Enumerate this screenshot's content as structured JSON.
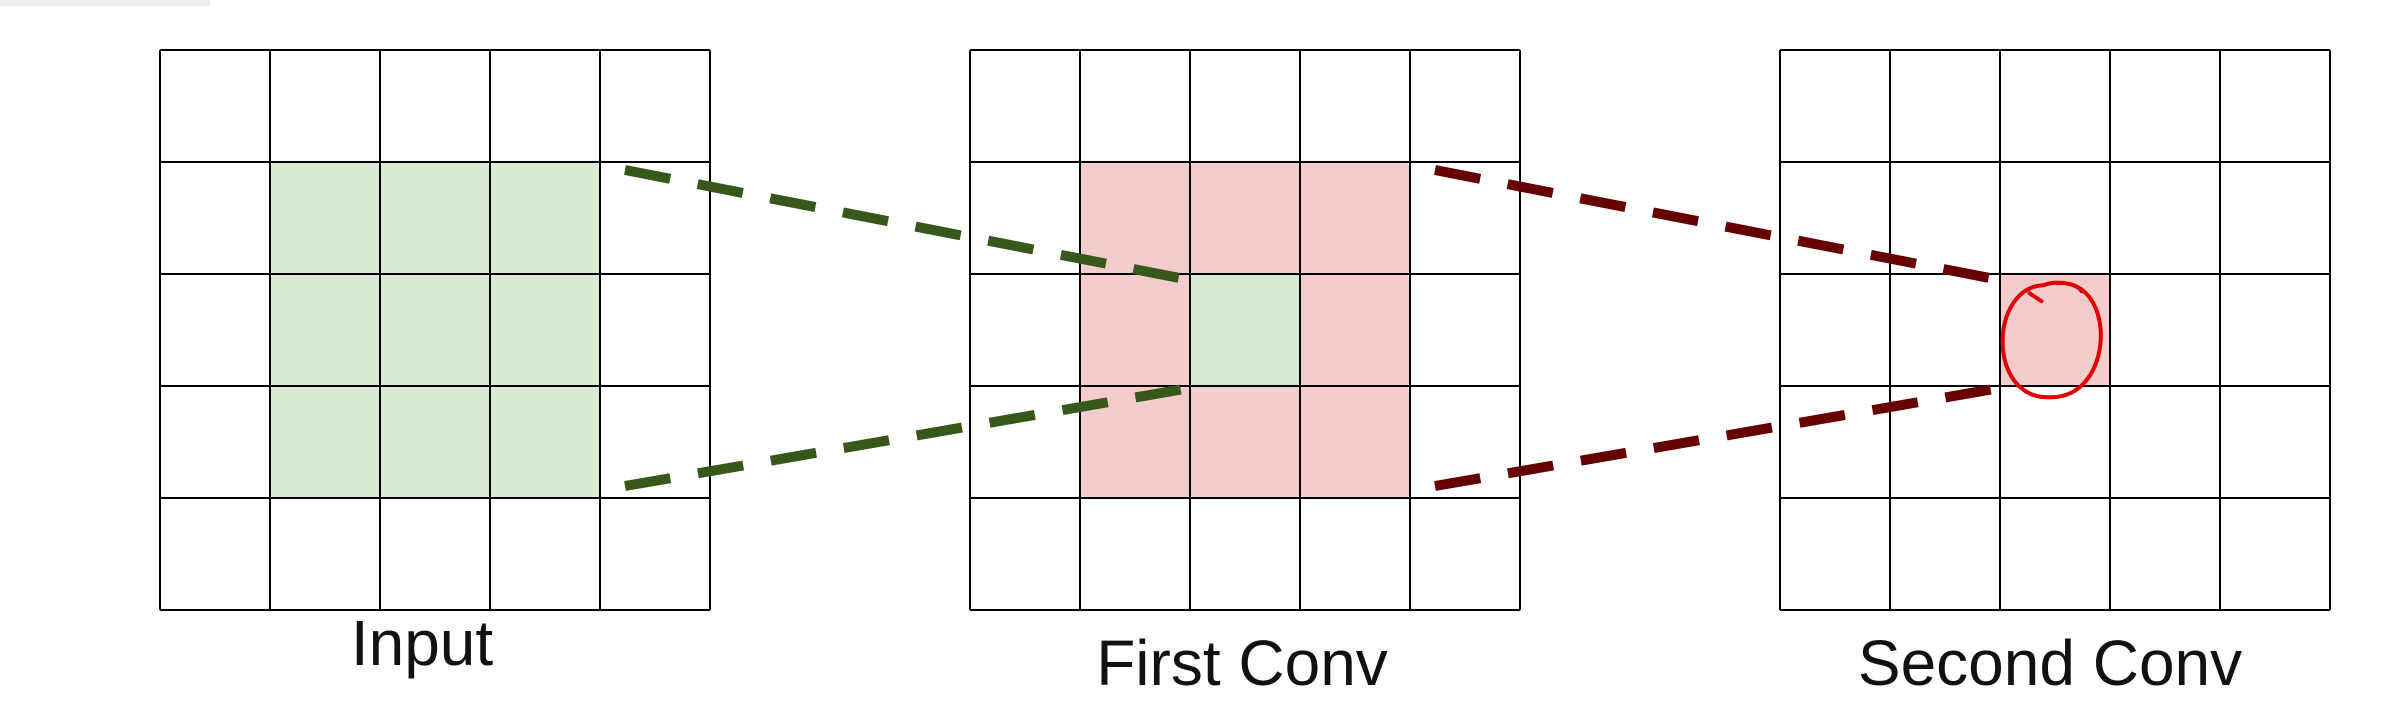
{
  "grids": [
    {
      "id": "input",
      "label": "Input",
      "rows": 5,
      "cols": 5,
      "highlights": [
        {
          "row": 1,
          "col": 1,
          "color": "#d9ead3"
        },
        {
          "row": 1,
          "col": 2,
          "color": "#d9ead3"
        },
        {
          "row": 1,
          "col": 3,
          "color": "#d9ead3"
        },
        {
          "row": 2,
          "col": 1,
          "color": "#d9ead3"
        },
        {
          "row": 2,
          "col": 2,
          "color": "#d9ead3"
        },
        {
          "row": 2,
          "col": 3,
          "color": "#d9ead3"
        },
        {
          "row": 3,
          "col": 1,
          "color": "#d9ead3"
        },
        {
          "row": 3,
          "col": 2,
          "color": "#d9ead3"
        },
        {
          "row": 3,
          "col": 3,
          "color": "#d9ead3"
        }
      ]
    },
    {
      "id": "first-conv",
      "label": "First Conv",
      "rows": 5,
      "cols": 5,
      "highlights": [
        {
          "row": 1,
          "col": 1,
          "color": "#f4cccc"
        },
        {
          "row": 1,
          "col": 2,
          "color": "#f4cccc"
        },
        {
          "row": 1,
          "col": 3,
          "color": "#f4cccc"
        },
        {
          "row": 2,
          "col": 1,
          "color": "#f4cccc"
        },
        {
          "row": 2,
          "col": 2,
          "color": "#d9ead3"
        },
        {
          "row": 2,
          "col": 3,
          "color": "#f4cccc"
        },
        {
          "row": 3,
          "col": 1,
          "color": "#f4cccc"
        },
        {
          "row": 3,
          "col": 2,
          "color": "#f4cccc"
        },
        {
          "row": 3,
          "col": 3,
          "color": "#f4cccc"
        }
      ]
    },
    {
      "id": "second-conv",
      "label": "Second Conv",
      "rows": 5,
      "cols": 5,
      "highlights": [
        {
          "row": 2,
          "col": 2,
          "color": "#f4cccc"
        }
      ]
    }
  ],
  "connectors": [
    {
      "from": "input",
      "to": "first-conv",
      "color": "#38571a"
    },
    {
      "from": "first-conv",
      "to": "second-conv",
      "color": "#660000"
    }
  ],
  "annotation": {
    "shape": "hand-drawn-circle",
    "grid": "second-conv",
    "row": 2,
    "col": 2,
    "color": "#e00000"
  },
  "colors": {
    "grid_line": "#000000",
    "green_fill": "#d9ead3",
    "red_fill": "#f4cccc",
    "green_dash": "#38571a",
    "red_dash": "#660000",
    "annotation": "#e00000"
  }
}
